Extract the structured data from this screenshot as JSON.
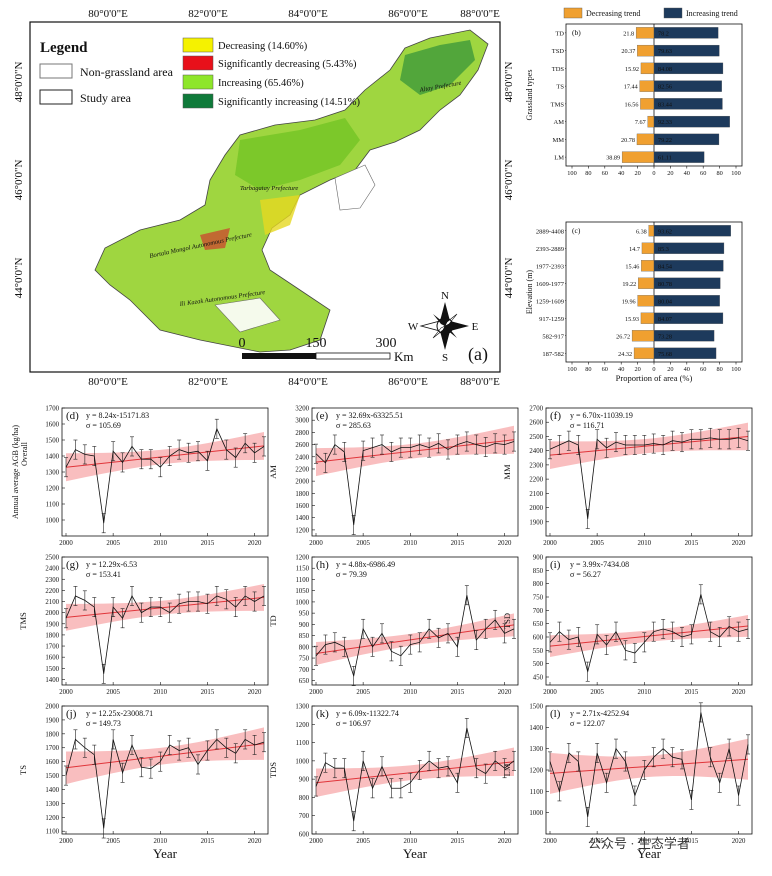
{
  "map": {
    "lon_ticks": [
      "80°0'0\"E",
      "82°0'0\"E",
      "84°0'0\"E",
      "86°0'0\"E",
      "88°0'0\"E"
    ],
    "lat_ticks": [
      "48°0'0\"N",
      "46°0'0\"N",
      "44°0'0\"N"
    ],
    "legend_title": "Legend",
    "legend_items": [
      {
        "label": "Non-grassland area",
        "color": "#ffffff"
      },
      {
        "label": "Study area",
        "color": "#ffffff"
      }
    ],
    "trend_items": [
      {
        "label": "Decreasing (14.60%)",
        "color": "#f5f200"
      },
      {
        "label": "Significantly decreasing (5.43%)",
        "color": "#e8101a"
      },
      {
        "label": "Increasing (65.46%)",
        "color": "#8ee62a"
      },
      {
        "label": "Significantly increasing (14.51%)",
        "color": "#0f7a3a"
      }
    ],
    "places": [
      "Altay Prefecture",
      "Tarbagatay Prefecture",
      "Bortala Mongol Autonomous Prefecture",
      "Ili Kazak Autonomous Prefecture"
    ],
    "scale_labels": [
      "0",
      "150",
      "300"
    ],
    "scale_unit": "Km",
    "compass": [
      "N",
      "S",
      "W",
      "E"
    ],
    "panel_label": "(a)"
  },
  "chart_data": [
    {
      "type": "bar",
      "panel": "(b)",
      "orientation": "diverging-horizontal",
      "legend": [
        "Decreasing trend",
        "Increasing trend"
      ],
      "ylabel": "Grassland types",
      "categories": [
        "TD",
        "TSD",
        "TDS",
        "TS",
        "TMS",
        "AM",
        "MM",
        "LM"
      ],
      "series": [
        {
          "name": "Decreasing trend",
          "values": [
            21.8,
            20.37,
            15.92,
            17.44,
            16.56,
            7.67,
            20.78,
            38.89
          ],
          "color": "#f0a030"
        },
        {
          "name": "Increasing trend",
          "values": [
            78.2,
            79.63,
            84.08,
            82.56,
            83.44,
            92.33,
            79.22,
            61.11
          ],
          "color": "#1d3a5c"
        }
      ],
      "xticks": [
        "100",
        "80",
        "60",
        "40",
        "20",
        "0",
        "20",
        "40",
        "60",
        "80",
        "100"
      ]
    },
    {
      "type": "bar",
      "panel": "(c)",
      "orientation": "diverging-horizontal",
      "ylabel": "Elevation (m)",
      "xlabel": "Proportion of area (%)",
      "categories": [
        "2889-4408",
        "2393-2889",
        "1977-2393",
        "1609-1977",
        "1259-1609",
        "917-1259",
        "582-917",
        "187-582"
      ],
      "series": [
        {
          "name": "Decreasing",
          "values": [
            6.38,
            14.7,
            15.46,
            19.22,
            19.96,
            15.93,
            26.72,
            24.32
          ],
          "color": "#f0a030"
        },
        {
          "name": "Increasing",
          "values": [
            93.62,
            85.3,
            84.54,
            80.78,
            80.04,
            84.07,
            73.28,
            75.68
          ],
          "color": "#1d3a5c"
        }
      ],
      "xticks": [
        "100",
        "80",
        "60",
        "40",
        "20",
        "0",
        "20",
        "40",
        "60",
        "80",
        "100"
      ]
    }
  ],
  "line_panels": [
    {
      "panel": "(d)",
      "ylabel": "Annual average AGB (kg/ha)",
      "ylabel2": "Overall",
      "eq": "y = 8.24x-15171.83",
      "sigma": "σ = 105.69",
      "ylim": [
        900,
        1700
      ],
      "yticks": [
        1000,
        1100,
        1200,
        1300,
        1400,
        1500,
        1600,
        1700
      ],
      "values": [
        1330,
        1440,
        1410,
        1400,
        980,
        1430,
        1360,
        1460,
        1380,
        1380,
        1330,
        1400,
        1440,
        1420,
        1430,
        1370,
        1570,
        1440,
        1390,
        1480,
        1420,
        1460
      ]
    },
    {
      "panel": "(e)",
      "ylabel": "AM",
      "eq": "y = 32.69x-63325.51",
      "sigma": "σ = 285.63",
      "ylim": [
        1100,
        3200
      ],
      "yticks": [
        1200,
        1400,
        1600,
        1800,
        2000,
        2200,
        2400,
        2600,
        2800,
        3000,
        3200
      ],
      "values": [
        2450,
        2300,
        2600,
        2480,
        1280,
        2500,
        2550,
        2600,
        2480,
        2550,
        2550,
        2600,
        2550,
        2620,
        2520,
        2600,
        2650,
        2600,
        2560,
        2620,
        2600,
        2650
      ]
    },
    {
      "panel": "(f)",
      "ylabel": "MM",
      "eq": "y = 6.70x-11039.19",
      "sigma": "σ = 116.71",
      "ylim": [
        1800,
        2700
      ],
      "yticks": [
        1900,
        2000,
        2100,
        2200,
        2300,
        2400,
        2500,
        2600,
        2700
      ],
      "values": [
        2410,
        2440,
        2470,
        2440,
        1920,
        2480,
        2420,
        2460,
        2440,
        2440,
        2440,
        2450,
        2440,
        2470,
        2460,
        2480,
        2480,
        2490,
        2480,
        2480,
        2490,
        2470
      ]
    },
    {
      "panel": "(g)",
      "ylabel": "TMS",
      "eq": "y = 12.29x-6.53",
      "sigma": "σ = 153.41",
      "ylim": [
        1350,
        2500
      ],
      "yticks": [
        1400,
        1500,
        1600,
        1700,
        1800,
        1900,
        2000,
        2100,
        2200,
        2300,
        2400,
        2500
      ],
      "values": [
        1950,
        2150,
        2110,
        2050,
        1450,
        2050,
        1950,
        2150,
        2000,
        2050,
        2050,
        2000,
        2080,
        2100,
        2100,
        2080,
        2150,
        2120,
        2050,
        2150,
        2100,
        2150
      ]
    },
    {
      "panel": "(h)",
      "ylabel": "TD",
      "eq": "y = 4.88x-6986.49",
      "sigma": "σ = 79.39",
      "ylim": [
        630,
        1200
      ],
      "yticks": [
        650,
        700,
        750,
        800,
        850,
        900,
        950,
        1000,
        1050,
        1100,
        1150,
        1200
      ],
      "values": [
        760,
        810,
        820,
        800,
        670,
        880,
        800,
        860,
        780,
        760,
        810,
        820,
        880,
        840,
        860,
        800,
        1030,
        830,
        880,
        920,
        860,
        880
      ]
    },
    {
      "panel": "(i)",
      "ylabel": "TSD",
      "eq": "y = 3.99x-7434.08",
      "sigma": "σ = 56.27",
      "ylim": [
        420,
        900
      ],
      "yticks": [
        450,
        500,
        550,
        600,
        650,
        700,
        750,
        800,
        850,
        900
      ],
      "values": [
        580,
        620,
        590,
        600,
        470,
        610,
        570,
        620,
        550,
        540,
        580,
        620,
        630,
        620,
        600,
        610,
        760,
        620,
        600,
        640,
        620,
        630
      ]
    },
    {
      "panel": "(j)",
      "ylabel": "TS",
      "eq": "y = 12.25x-23008.71",
      "sigma": "σ = 149.73",
      "ylim": [
        1080,
        2000
      ],
      "yticks": [
        1100,
        1200,
        1300,
        1400,
        1500,
        1600,
        1700,
        1800,
        1900,
        2000
      ],
      "values": [
        1500,
        1760,
        1700,
        1650,
        1120,
        1760,
        1520,
        1720,
        1560,
        1550,
        1600,
        1720,
        1680,
        1700,
        1580,
        1680,
        1760,
        1700,
        1660,
        1760,
        1720,
        1740
      ]
    },
    {
      "panel": "(k)",
      "ylabel": "TDS",
      "eq": "y = 6.09x-11322.74",
      "sigma": "σ = 106.97",
      "ylim": [
        600,
        1300
      ],
      "yticks": [
        600,
        700,
        800,
        900,
        1000,
        1100,
        1200,
        1300
      ],
      "values": [
        860,
        990,
        960,
        960,
        670,
        1000,
        850,
        970,
        850,
        850,
        880,
        950,
        1000,
        960,
        970,
        880,
        1180,
        960,
        930,
        1000,
        960,
        1000
      ]
    },
    {
      "panel": "(l)",
      "ylabel": "LM",
      "eq": "y = 2.71x-4252.94",
      "sigma": "σ = 122.07",
      "ylim": [
        900,
        1500
      ],
      "yticks": [
        1000,
        1100,
        1200,
        1300,
        1400,
        1500
      ],
      "values": [
        1240,
        1100,
        1280,
        1240,
        980,
        1280,
        1140,
        1300,
        1240,
        1080,
        1200,
        1260,
        1300,
        1260,
        1250,
        1060,
        1470,
        1260,
        1140,
        1300,
        1080,
        1320
      ]
    }
  ],
  "line_xticks": [
    "2000",
    "2005",
    "2010",
    "2015",
    "2020"
  ],
  "line_xlabel": "Year",
  "watermark": "公众号 · 生态学者"
}
